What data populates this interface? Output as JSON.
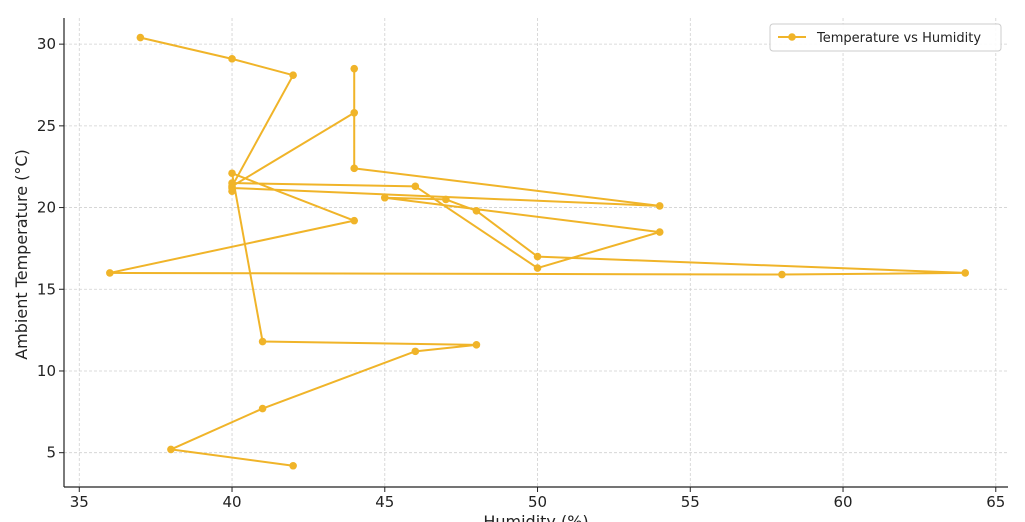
{
  "chart_data": {
    "type": "line",
    "title": "",
    "xlabel": "Humidity (%)",
    "ylabel": "Ambient Temperature (°C)",
    "xlim": [
      34.5,
      65.4
    ],
    "ylim": [
      2.9,
      31.6
    ],
    "xticks": [
      35,
      40,
      45,
      50,
      55,
      60,
      65
    ],
    "yticks": [
      5,
      10,
      15,
      20,
      25,
      30
    ],
    "grid": true,
    "legend_position": "top-right",
    "series": [
      {
        "name": "Temperature vs Humidity",
        "color": "#f0b429",
        "marker": "circle",
        "points": [
          {
            "x": 37,
            "y": 30.4
          },
          {
            "x": 40,
            "y": 29.1
          },
          {
            "x": 42,
            "y": 28.1
          },
          {
            "x": 40,
            "y": 21.3
          },
          {
            "x": 44,
            "y": 25.8
          },
          {
            "x": 44,
            "y": 28.5
          },
          {
            "x": 44,
            "y": 22.4
          },
          {
            "x": 54,
            "y": 20.1
          },
          {
            "x": 40,
            "y": 21.2
          },
          {
            "x": 40,
            "y": 21.0
          },
          {
            "x": 40,
            "y": 21.5
          },
          {
            "x": 46,
            "y": 21.3
          },
          {
            "x": 50,
            "y": 16.3
          },
          {
            "x": 54,
            "y": 18.5
          },
          {
            "x": 45,
            "y": 20.6
          },
          {
            "x": 47,
            "y": 20.5
          },
          {
            "x": 48,
            "y": 19.8
          },
          {
            "x": 50,
            "y": 17.0
          },
          {
            "x": 64,
            "y": 16.0
          },
          {
            "x": 58,
            "y": 15.9
          },
          {
            "x": 36,
            "y": 16.0
          },
          {
            "x": 44,
            "y": 19.2
          },
          {
            "x": 40,
            "y": 22.1
          },
          {
            "x": 41,
            "y": 11.8
          },
          {
            "x": 48,
            "y": 11.6
          },
          {
            "x": 46,
            "y": 11.2
          },
          {
            "x": 41,
            "y": 7.7
          },
          {
            "x": 38,
            "y": 5.2
          },
          {
            "x": 42,
            "y": 4.2
          }
        ]
      }
    ]
  }
}
